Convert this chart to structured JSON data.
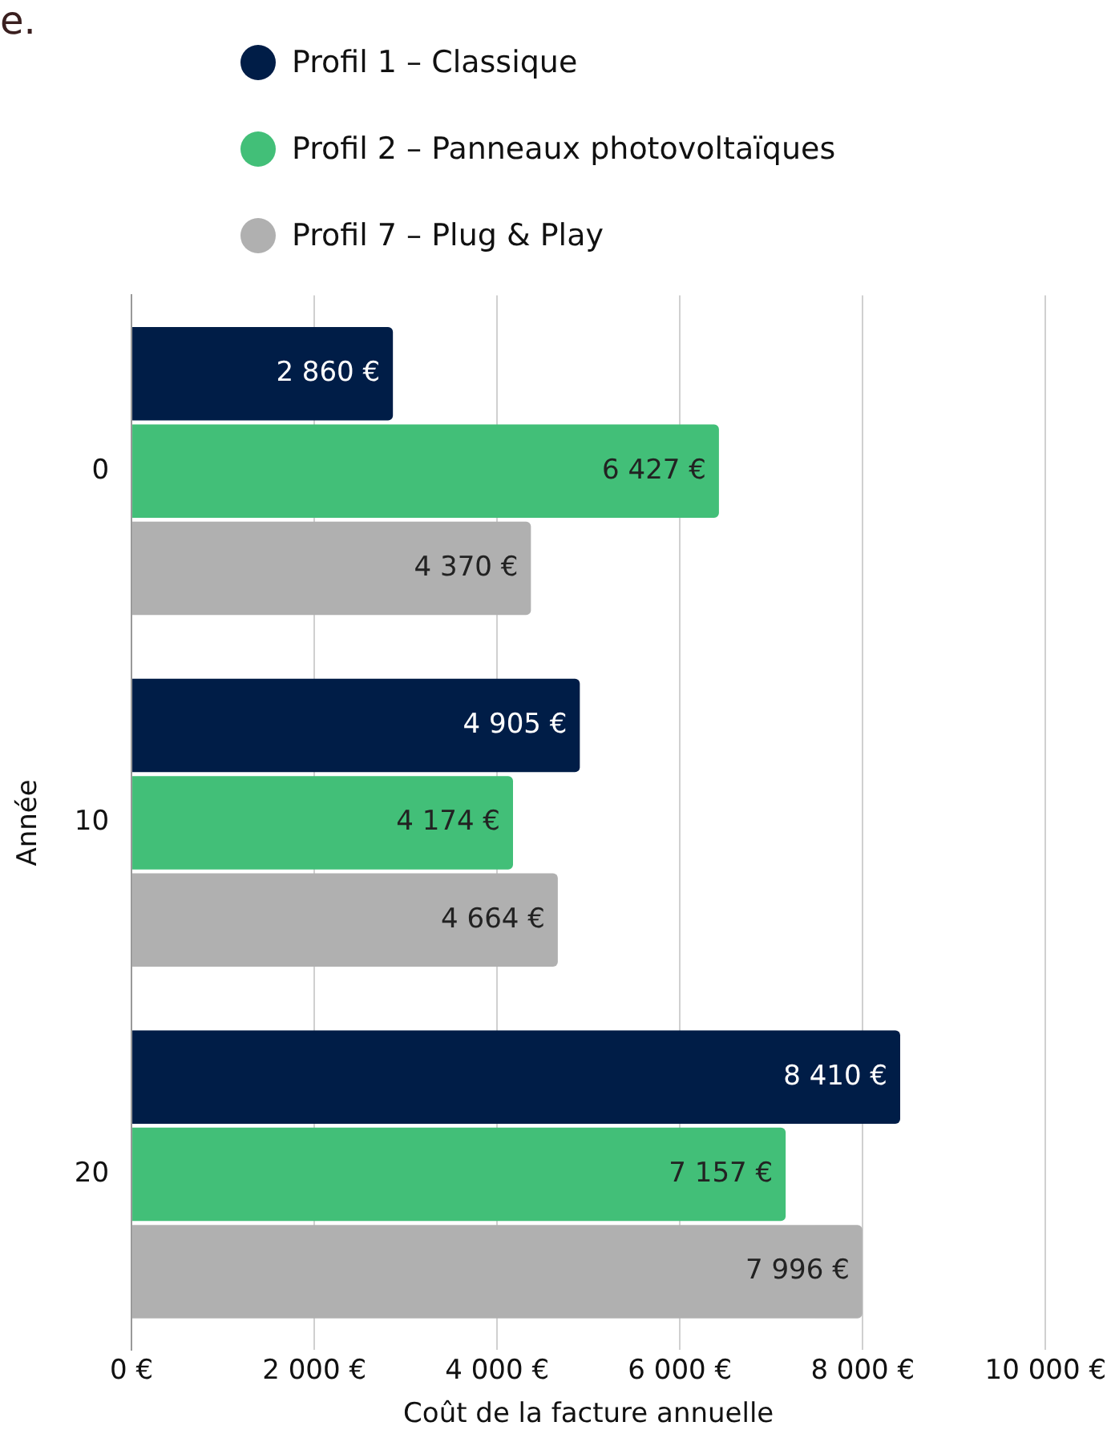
{
  "chart_data": {
    "type": "bar",
    "orientation": "horizontal",
    "annotations": [
      "e."
    ],
    "xlabel": "Coût de la facture annuelle",
    "ylabel": "Année",
    "categories": [
      "0",
      "10",
      "20"
    ],
    "series": [
      {
        "name": "Profil 1 – Classique",
        "color": "#001d47",
        "values": [
          2860,
          4905,
          8410
        ],
        "value_labels": [
          "2 860 €",
          "4 905 €",
          "8 410 €"
        ]
      },
      {
        "name": "Profil 2 – Panneaux photovoltaïques",
        "color": "#42bf78",
        "values": [
          6427,
          4174,
          7157
        ],
        "value_labels": [
          "6 427 €",
          "4 174 €",
          "7 157 €"
        ]
      },
      {
        "name": "Profil 7 – Plug & Play",
        "color": "#b0b0b0",
        "values": [
          4370,
          4664,
          7996
        ],
        "value_labels": [
          "4 370 €",
          "4 664 €",
          "7 996 €"
        ]
      }
    ],
    "xlim": [
      0,
      10000
    ],
    "xticks": [
      {
        "value": 0,
        "label": "0 €"
      },
      {
        "value": 2000,
        "label": "2 000 €"
      },
      {
        "value": 4000,
        "label": "4 000 €"
      },
      {
        "value": 6000,
        "label": "6 000 €"
      },
      {
        "value": 8000,
        "label": "8 000 €"
      },
      {
        "value": 10000,
        "label": "10 000 €"
      }
    ],
    "grid": "x",
    "legend": "top"
  }
}
